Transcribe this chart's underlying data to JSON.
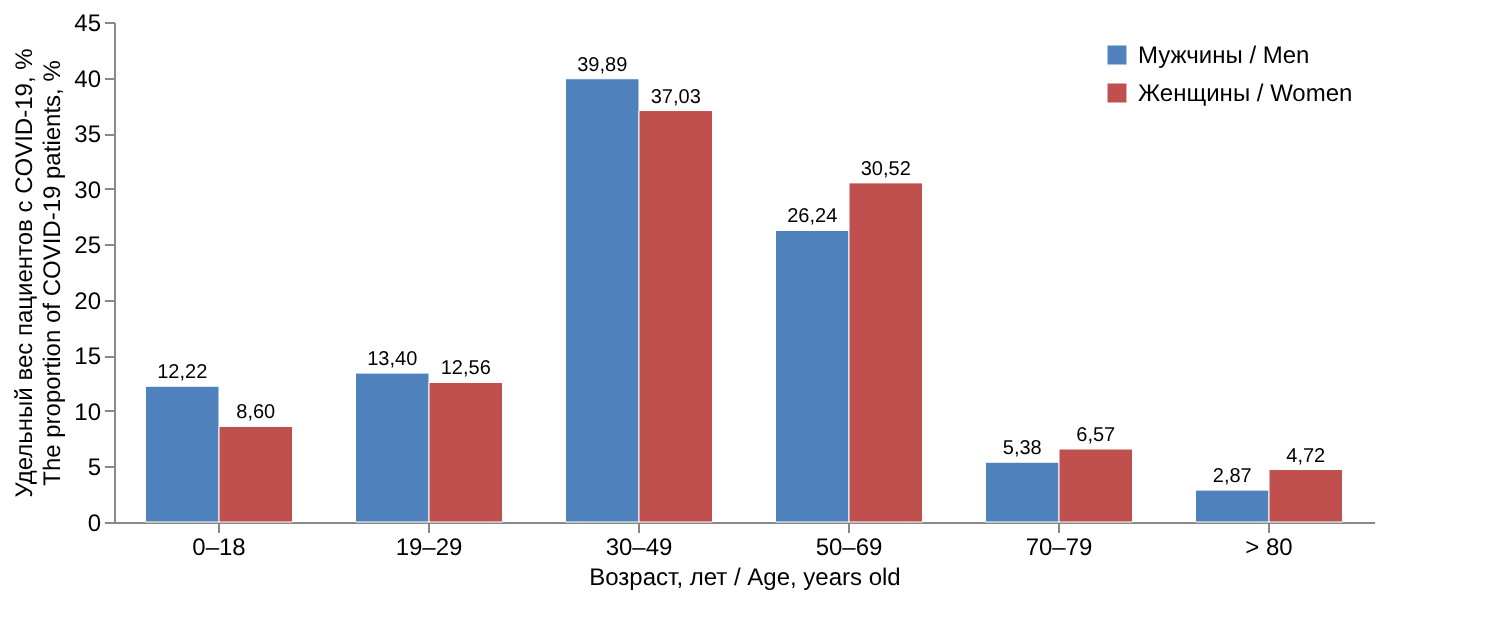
{
  "chart_data": {
    "type": "bar",
    "xlabel": "Возраст, лет / Age, years old",
    "ylabel": "Удельный вес пациентов с COVID-19, %\nThe proportion of COVID-19 patients, %",
    "categories": [
      "0–18",
      "19–29",
      "30–49",
      "50–69",
      "70–79",
      "> 80"
    ],
    "series": [
      {
        "name": "Мужчины / Men",
        "color": "#4f81bd",
        "values": [
          12.22,
          13.4,
          39.89,
          26.24,
          5.38,
          2.87
        ],
        "value_labels": [
          "12,22",
          "13,40",
          "39,89",
          "26,24",
          "5,38",
          "2,87"
        ]
      },
      {
        "name": "Женщины / Women",
        "color": "#c0504d",
        "values": [
          8.6,
          12.56,
          37.03,
          30.52,
          6.57,
          4.72
        ],
        "value_labels": [
          "8,60",
          "12,56",
          "37,03",
          "30,52",
          "6,57",
          "4,72"
        ]
      }
    ],
    "ylim": [
      0,
      45
    ],
    "yticks": [
      0,
      5,
      10,
      15,
      20,
      25,
      30,
      35,
      40,
      45
    ],
    "grid": false,
    "legend": "top right"
  }
}
